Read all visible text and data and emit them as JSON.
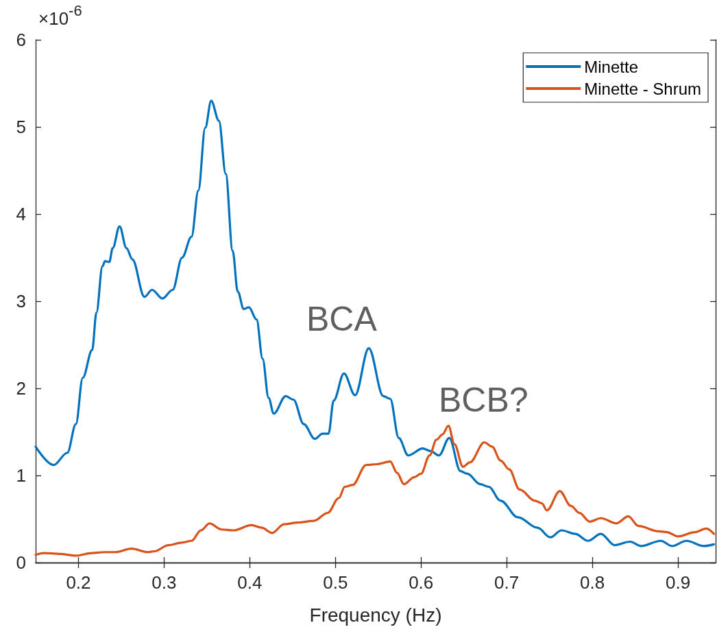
{
  "chart_data": {
    "type": "line",
    "xlabel": "Frequency (Hz)",
    "ylabel": "×10$^{-6}$",
    "xlim": [
      0.15,
      0.944
    ],
    "xticks": [
      0.2,
      0.3,
      0.4,
      0.5,
      0.6,
      0.7,
      0.8,
      0.9
    ],
    "ylim": [
      0,
      6
    ],
    "yticks": [
      0,
      1,
      2,
      3,
      4,
      5,
      6
    ],
    "grid": false,
    "legend": "top right",
    "marker": "none",
    "line_style": "solid",
    "annotations": [
      "BCA",
      "BCB?"
    ],
    "series": [
      {
        "name": "Minette",
        "color": "#0072bd",
        "x": [
          0.15,
          0.171,
          0.187,
          0.197,
          0.205,
          0.216,
          0.221,
          0.228,
          0.231,
          0.236,
          0.24,
          0.248,
          0.256,
          0.263,
          0.277,
          0.286,
          0.298,
          0.31,
          0.321,
          0.332,
          0.34,
          0.348,
          0.355,
          0.364,
          0.372,
          0.38,
          0.386,
          0.393,
          0.399,
          0.408,
          0.415,
          0.422,
          0.428,
          0.442,
          0.451,
          0.463,
          0.476,
          0.485,
          0.492,
          0.498,
          0.51,
          0.523,
          0.539,
          0.556,
          0.564,
          0.574,
          0.585,
          0.602,
          0.611,
          0.621,
          0.633,
          0.646,
          0.654,
          0.669,
          0.679,
          0.693,
          0.713,
          0.736,
          0.751,
          0.764,
          0.78,
          0.795,
          0.81,
          0.826,
          0.844,
          0.857,
          0.88,
          0.893,
          0.91,
          0.93,
          0.942
        ],
        "values": [
          1.33,
          1.12,
          1.26,
          1.59,
          2.12,
          2.44,
          2.87,
          3.4,
          3.46,
          3.45,
          3.61,
          3.86,
          3.61,
          3.48,
          3.05,
          3.13,
          3.03,
          3.13,
          3.5,
          3.74,
          4.27,
          4.99,
          5.3,
          5.07,
          4.46,
          3.58,
          3.11,
          2.91,
          2.93,
          2.79,
          2.34,
          1.89,
          1.71,
          1.91,
          1.87,
          1.59,
          1.42,
          1.48,
          1.48,
          1.86,
          2.17,
          1.92,
          2.46,
          1.91,
          1.88,
          1.43,
          1.23,
          1.31,
          1.28,
          1.23,
          1.43,
          1.05,
          1.02,
          0.9,
          0.87,
          0.71,
          0.52,
          0.4,
          0.29,
          0.37,
          0.33,
          0.25,
          0.33,
          0.2,
          0.24,
          0.19,
          0.25,
          0.19,
          0.25,
          0.19,
          0.21
        ]
      },
      {
        "name": "Minette - Shrum",
        "color": "#d95319",
        "x": [
          0.15,
          0.16,
          0.178,
          0.197,
          0.216,
          0.23,
          0.243,
          0.262,
          0.281,
          0.289,
          0.305,
          0.321,
          0.332,
          0.343,
          0.353,
          0.367,
          0.381,
          0.402,
          0.414,
          0.426,
          0.44,
          0.456,
          0.475,
          0.491,
          0.504,
          0.511,
          0.52,
          0.536,
          0.549,
          0.564,
          0.572,
          0.58,
          0.592,
          0.6,
          0.61,
          0.618,
          0.625,
          0.632,
          0.639,
          0.649,
          0.657,
          0.674,
          0.683,
          0.693,
          0.703,
          0.715,
          0.733,
          0.741,
          0.747,
          0.762,
          0.775,
          0.785,
          0.797,
          0.81,
          0.828,
          0.842,
          0.854,
          0.877,
          0.887,
          0.9,
          0.92,
          0.933,
          0.942
        ],
        "values": [
          0.09,
          0.11,
          0.1,
          0.08,
          0.11,
          0.12,
          0.12,
          0.16,
          0.12,
          0.13,
          0.2,
          0.23,
          0.25,
          0.37,
          0.45,
          0.38,
          0.37,
          0.43,
          0.4,
          0.34,
          0.44,
          0.46,
          0.48,
          0.57,
          0.74,
          0.87,
          0.89,
          1.12,
          1.13,
          1.16,
          1.03,
          0.9,
          0.98,
          1.02,
          1.23,
          1.41,
          1.47,
          1.57,
          1.36,
          1.1,
          1.15,
          1.38,
          1.33,
          1.17,
          1.07,
          0.84,
          0.71,
          0.68,
          0.6,
          0.82,
          0.65,
          0.57,
          0.47,
          0.51,
          0.45,
          0.53,
          0.42,
          0.36,
          0.35,
          0.3,
          0.35,
          0.39,
          0.33
        ]
      }
    ]
  }
}
